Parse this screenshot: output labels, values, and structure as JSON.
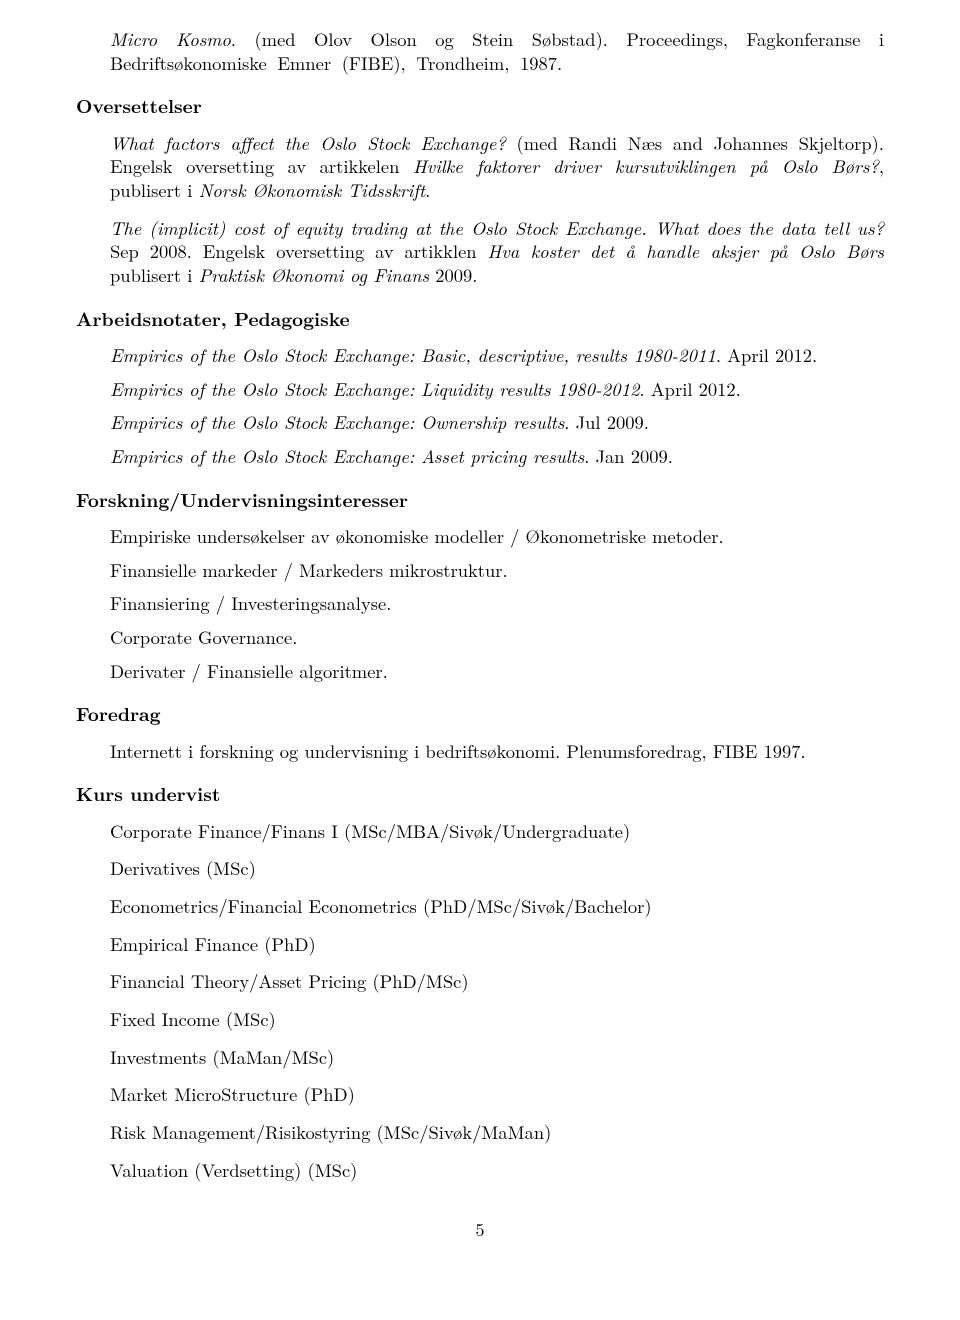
{
  "top": {
    "micro_kosmo": "Micro Kosmo",
    "micro_kosmo_rest": ". (med Olov Olson og Stein Søbstad).  Proceedings, Fagkonferanse i Bedriftsøkonomiske Emner (FIBE), Trondheim, 1987."
  },
  "sections": {
    "oversettelser": "Oversettelser",
    "arbeidsnotater": "Arbeidsnotater, Pedagogiske",
    "forskning": "Forskning/Undervisningsinteresser",
    "foredrag": "Foredrag",
    "kurs": "Kurs undervist"
  },
  "oversettelser": {
    "p1_i1": "What factors affect the Oslo Stock Exchange?",
    "p1_r1": " (med Randi Næs and Johannes Skjeltorp). Engelsk oversetting av artikkelen ",
    "p1_i2": "Hvilke faktorer driver kursutviklingen på Oslo Børs?",
    "p1_r2": ", publisert i ",
    "p1_i3": "Norsk Økonomisk Tidsskrift",
    "p1_r3": ".",
    "p2_i1": "The (implicit) cost of equity trading at the Oslo Stock Exchange. What does the data tell us?",
    "p2_r1": " Sep 2008. Engelsk oversetting av artikklen ",
    "p2_i2": "Hva koster det å handle aksjer på Oslo Børs",
    "p2_r2": " publisert i ",
    "p2_i3": "Praktisk Økonomi og Finans",
    "p2_r3": " 2009."
  },
  "arbeidsnotater": {
    "e1_i": "Empirics of the Oslo Stock Exchange: Basic, descriptive, results 1980-2011",
    "e1_r": ". April 2012.",
    "e2_i": "Empirics of the Oslo Stock Exchange: Liquidity results 1980-2012",
    "e2_r": ". April 2012.",
    "e3_i": "Empirics of the Oslo Stock Exchange: Ownership results",
    "e3_r": ". Jul 2009.",
    "e4_i": "Empirics of the Oslo Stock Exchange: Asset pricing results",
    "e4_r": ". Jan 2009."
  },
  "forskning": {
    "l1": "Empiriske undersøkelser av økonomiske modeller / Økonometriske metoder.",
    "l2": "Finansielle markeder / Markeders mikrostruktur.",
    "l3": "Finansiering / Investeringsanalyse.",
    "l4": "Corporate Governance.",
    "l5": "Derivater / Finansielle algoritmer."
  },
  "foredrag": {
    "l1": "Internett i forskning og undervisning i bedriftsøkonomi. Plenumsforedrag, FIBE 1997."
  },
  "kurs": {
    "l1": "Corporate Finance/Finans I (MSc/MBA/Sivøk/Undergraduate)",
    "l2": "Derivatives (MSc)",
    "l3": "Econometrics/Financial Econometrics (PhD/MSc/Sivøk/Bachelor)",
    "l4": "Empirical Finance (PhD)",
    "l5": "Financial Theory/Asset Pricing (PhD/MSc)",
    "l6": "Fixed Income (MSc)",
    "l7": "Investments (MaMan/MSc)",
    "l8": "Market MicroStructure (PhD)",
    "l9": "Risk Management/Risikostyring (MSc/Sivøk/MaMan)",
    "l10": "Valuation (Verdsetting) (MSc)"
  },
  "page_number": "5"
}
